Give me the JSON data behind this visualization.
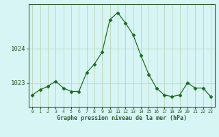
{
  "x": [
    0,
    1,
    2,
    3,
    4,
    5,
    6,
    7,
    8,
    9,
    10,
    11,
    12,
    13,
    14,
    15,
    16,
    17,
    18,
    19,
    20,
    21,
    22,
    23
  ],
  "y": [
    1022.65,
    1022.8,
    1022.9,
    1023.05,
    1022.85,
    1022.75,
    1022.75,
    1023.3,
    1023.55,
    1023.9,
    1024.85,
    1025.05,
    1024.75,
    1024.4,
    1023.8,
    1023.25,
    1022.85,
    1022.65,
    1022.6,
    1022.65,
    1023.0,
    1022.85,
    1022.85,
    1022.6
  ],
  "line_color": "#1a6b1a",
  "marker": "D",
  "marker_size": 2.5,
  "bg_color": "#d7f5f5",
  "grid_color": "#c0d8c0",
  "axis_color": "#2e5e2e",
  "ylabel_ticks": [
    1023,
    1024
  ],
  "xlabel": "Graphe pression niveau de la mer (hPa)",
  "xlim": [
    -0.5,
    23.5
  ],
  "ylim": [
    1022.3,
    1025.3
  ],
  "xtick_labels": [
    "0",
    "1",
    "2",
    "3",
    "4",
    "5",
    "6",
    "7",
    "8",
    "9",
    "10",
    "11",
    "12",
    "13",
    "14",
    "15",
    "16",
    "17",
    "18",
    "19",
    "20",
    "21",
    "22",
    "23"
  ]
}
